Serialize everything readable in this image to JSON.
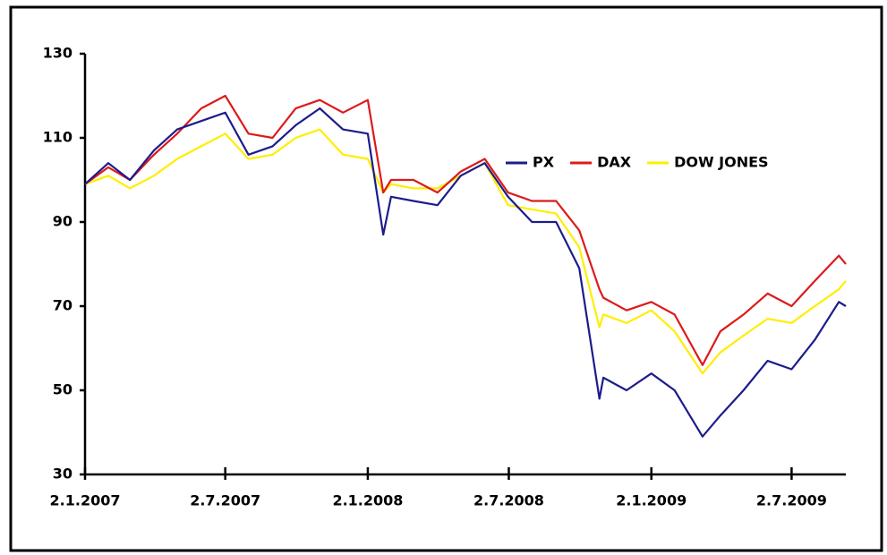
{
  "chart_data": {
    "type": "line",
    "x": [
      "2007-01-02",
      "2007-02-01",
      "2007-03-01",
      "2007-04-01",
      "2007-05-01",
      "2007-06-01",
      "2007-07-02",
      "2007-08-01",
      "2007-09-01",
      "2007-10-01",
      "2007-11-01",
      "2007-12-01",
      "2008-01-02",
      "2008-01-22",
      "2008-02-01",
      "2008-03-01",
      "2008-04-01",
      "2008-05-01",
      "2008-06-01",
      "2008-07-01",
      "2008-08-01",
      "2008-09-01",
      "2008-10-01",
      "2008-10-27",
      "2008-11-01",
      "2008-12-01",
      "2009-01-02",
      "2009-02-01",
      "2009-03-09",
      "2009-04-01",
      "2009-05-01",
      "2009-06-01",
      "2009-07-02",
      "2009-08-01",
      "2009-09-01",
      "2009-09-10"
    ],
    "series": [
      {
        "name": "PX",
        "color": "#1c1c8c",
        "values": [
          99,
          104,
          100,
          107,
          112,
          114,
          116,
          106,
          108,
          113,
          117,
          112,
          111,
          87,
          96,
          95,
          94,
          101,
          104,
          96,
          90,
          90,
          79,
          48,
          53,
          50,
          54,
          50,
          39,
          44,
          50,
          57,
          55,
          62,
          71,
          70
        ]
      },
      {
        "name": "DAX",
        "color": "#dd1a1a",
        "values": [
          99,
          103,
          100,
          106,
          111,
          117,
          120,
          111,
          110,
          117,
          119,
          116,
          119,
          97,
          100,
          100,
          97,
          102,
          105,
          97,
          95,
          95,
          88,
          74,
          72,
          69,
          71,
          68,
          56,
          64,
          68,
          73,
          70,
          76,
          82,
          80
        ]
      },
      {
        "name": "DOW JONES",
        "color": "#ffee00",
        "values": [
          99,
          101,
          98,
          101,
          105,
          108,
          111,
          105,
          106,
          110,
          112,
          106,
          105,
          97,
          99,
          98,
          98,
          101,
          104,
          94,
          93,
          92,
          84,
          65,
          68,
          66,
          69,
          64,
          54,
          59,
          63,
          67,
          66,
          70,
          74,
          76
        ]
      }
    ],
    "xlim": [
      "2007-01-02",
      "2009-09-10"
    ],
    "xticks": [
      {
        "value": "2007-01-02",
        "label": "2.1.2007"
      },
      {
        "value": "2007-07-02",
        "label": "2.7.2007"
      },
      {
        "value": "2008-01-02",
        "label": "2.1.2008"
      },
      {
        "value": "2008-07-02",
        "label": "2.7.2008"
      },
      {
        "value": "2009-01-02",
        "label": "2.1.2009"
      },
      {
        "value": "2009-07-02",
        "label": "2.7.2009"
      }
    ],
    "ylim": [
      30,
      130
    ],
    "yticks": [
      30,
      50,
      70,
      90,
      110,
      130
    ]
  }
}
